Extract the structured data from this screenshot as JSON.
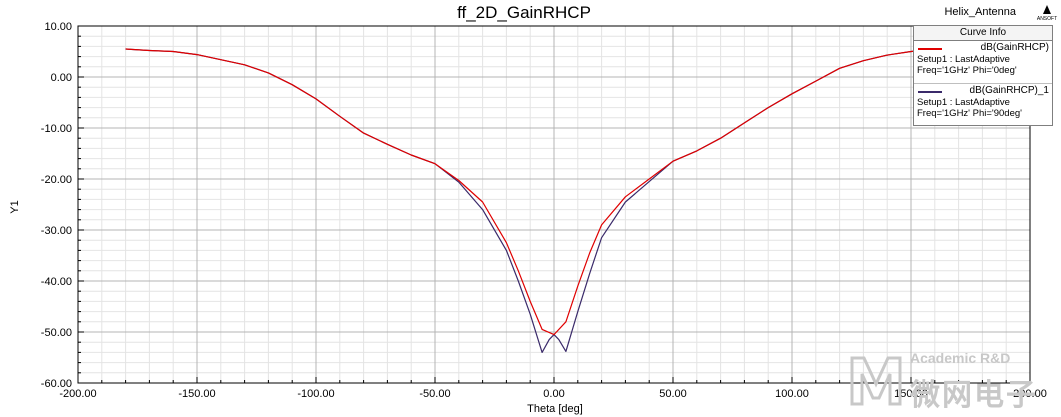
{
  "project_name": "Helix_Antenna",
  "brand": "ANSOFT",
  "watermark": {
    "line1": "Academic R&D",
    "line2": "微网电子"
  },
  "chart_data": {
    "type": "line",
    "title": "ff_2D_GainRHCP",
    "xlabel": "Theta [deg]",
    "ylabel": "Y1",
    "xlim": [
      -200,
      200
    ],
    "ylim": [
      -60,
      10
    ],
    "xticks": [
      -200,
      -150,
      -100,
      -50,
      0,
      50,
      100,
      150,
      200
    ],
    "yticks": [
      10,
      0,
      -10,
      -20,
      -30,
      -40,
      -50,
      -60
    ],
    "xtick_labels": [
      "-200.00",
      "-150.00",
      "-100.00",
      "-50.00",
      "0.00",
      "50.00",
      "100.00",
      "150.00",
      "200.00"
    ],
    "ytick_labels": [
      "10.00",
      "0.00",
      "-10.00",
      "-20.00",
      "-30.00",
      "-40.00",
      "-50.00",
      "-60.00"
    ],
    "grid": true,
    "legend_title": "Curve Info",
    "legend_position": "top-right",
    "series": [
      {
        "name": "dB(GainRHCP)",
        "setup": "Setup1 : LastAdaptive",
        "params": "Freq='1GHz' Phi='0deg'",
        "color": "#e00000",
        "x": [
          -180,
          -170,
          -160,
          -150,
          -140,
          -130,
          -120,
          -110,
          -100,
          -90,
          -80,
          -70,
          -60,
          -50,
          -40,
          -30,
          -20,
          -15,
          -10,
          -5,
          0,
          5,
          10,
          15,
          20,
          30,
          40,
          50,
          60,
          70,
          80,
          90,
          100,
          110,
          120,
          130,
          140,
          150,
          160,
          170,
          180
        ],
        "y": [
          5.5,
          5.2,
          5.0,
          4.4,
          3.4,
          2.4,
          0.8,
          -1.5,
          -4.3,
          -7.7,
          -11.0,
          -13.2,
          -15.3,
          -17.0,
          -20.3,
          -24.5,
          -32.5,
          -38.0,
          -44.0,
          -49.5,
          -50.5,
          -48.0,
          -41.0,
          -34.5,
          -29.0,
          -23.5,
          -20.0,
          -16.5,
          -14.5,
          -12.0,
          -9.0,
          -6.0,
          -3.3,
          -0.8,
          1.7,
          3.2,
          4.3,
          5.0,
          5.4,
          5.5,
          5.5
        ]
      },
      {
        "name": "dB(GainRHCP)_1",
        "setup": "Setup1 : LastAdaptive",
        "params": "Freq='1GHz' Phi='90deg'",
        "color": "#3a2a6a",
        "x": [
          -180,
          -170,
          -160,
          -150,
          -140,
          -130,
          -120,
          -110,
          -100,
          -90,
          -80,
          -70,
          -60,
          -50,
          -40,
          -30,
          -20,
          -15,
          -10,
          -5,
          -2,
          0,
          2,
          5,
          10,
          15,
          20,
          30,
          40,
          50,
          60,
          70,
          80,
          90,
          100,
          110,
          120,
          130,
          140,
          150,
          160,
          170,
          180
        ],
        "y": [
          5.5,
          5.2,
          5.0,
          4.4,
          3.4,
          2.4,
          0.8,
          -1.5,
          -4.3,
          -7.7,
          -11.0,
          -13.2,
          -15.3,
          -17.0,
          -20.6,
          -26.0,
          -34.0,
          -40.0,
          -46.5,
          -54.0,
          -51.5,
          -50.5,
          -51.5,
          -53.8,
          -46.0,
          -38.5,
          -31.5,
          -24.5,
          -20.5,
          -16.5,
          -14.5,
          -12.0,
          -9.0,
          -6.0,
          -3.3,
          -0.8,
          1.7,
          3.2,
          4.3,
          5.0,
          5.4,
          5.5,
          5.5
        ]
      }
    ]
  }
}
